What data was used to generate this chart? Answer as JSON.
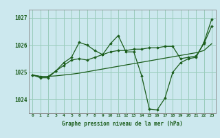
{
  "title": "Graphe pression niveau de la mer (hPa)",
  "bg_color": "#cce8ee",
  "grid_color": "#99ccbb",
  "line_color": "#1a5c1a",
  "x_ticks": [
    0,
    1,
    2,
    3,
    4,
    5,
    6,
    7,
    8,
    9,
    10,
    11,
    12,
    13,
    14,
    15,
    16,
    17,
    18,
    19,
    20,
    21,
    22,
    23
  ],
  "ylim": [
    1023.5,
    1027.3
  ],
  "yticks": [
    1024,
    1025,
    1026,
    1027
  ],
  "line1": {
    "x": [
      0,
      1,
      2,
      3,
      4,
      5,
      6,
      7,
      8,
      9,
      10,
      11,
      12,
      13,
      14,
      15,
      16,
      17,
      18,
      19,
      20,
      21,
      22,
      23
    ],
    "y": [
      1024.9,
      1024.85,
      1024.85,
      1024.87,
      1024.9,
      1024.93,
      1024.97,
      1025.02,
      1025.07,
      1025.12,
      1025.17,
      1025.22,
      1025.27,
      1025.32,
      1025.37,
      1025.42,
      1025.47,
      1025.52,
      1025.57,
      1025.62,
      1025.67,
      1025.72,
      1025.8,
      1026.05
    ]
  },
  "line2": {
    "x": [
      0,
      1,
      2,
      3,
      4,
      5,
      6,
      7,
      8,
      9,
      10,
      11,
      12,
      13,
      14,
      15,
      16,
      17,
      18,
      19,
      20,
      21,
      22,
      23
    ],
    "y": [
      1024.9,
      1024.85,
      1024.85,
      1025.05,
      1025.25,
      1025.45,
      1025.5,
      1025.45,
      1025.55,
      1025.65,
      1025.75,
      1025.8,
      1025.8,
      1025.85,
      1025.85,
      1025.9,
      1025.9,
      1025.95,
      1025.95,
      1025.5,
      1025.55,
      1025.6,
      1026.05,
      1026.7
    ]
  },
  "line3": {
    "x": [
      0,
      1,
      2,
      3,
      4,
      5,
      6,
      7,
      8,
      9,
      10,
      11,
      12,
      13,
      14,
      15,
      16,
      17,
      18,
      19,
      20,
      21,
      22,
      23
    ],
    "y": [
      1024.9,
      1024.8,
      1024.8,
      1025.05,
      1025.35,
      1025.55,
      1026.1,
      1026.0,
      1025.8,
      1025.65,
      1026.05,
      1026.35,
      1025.75,
      1025.75,
      1024.88,
      1023.65,
      1023.62,
      1024.05,
      1025.0,
      1025.35,
      1025.5,
      1025.55,
      1026.1,
      1026.95
    ]
  }
}
